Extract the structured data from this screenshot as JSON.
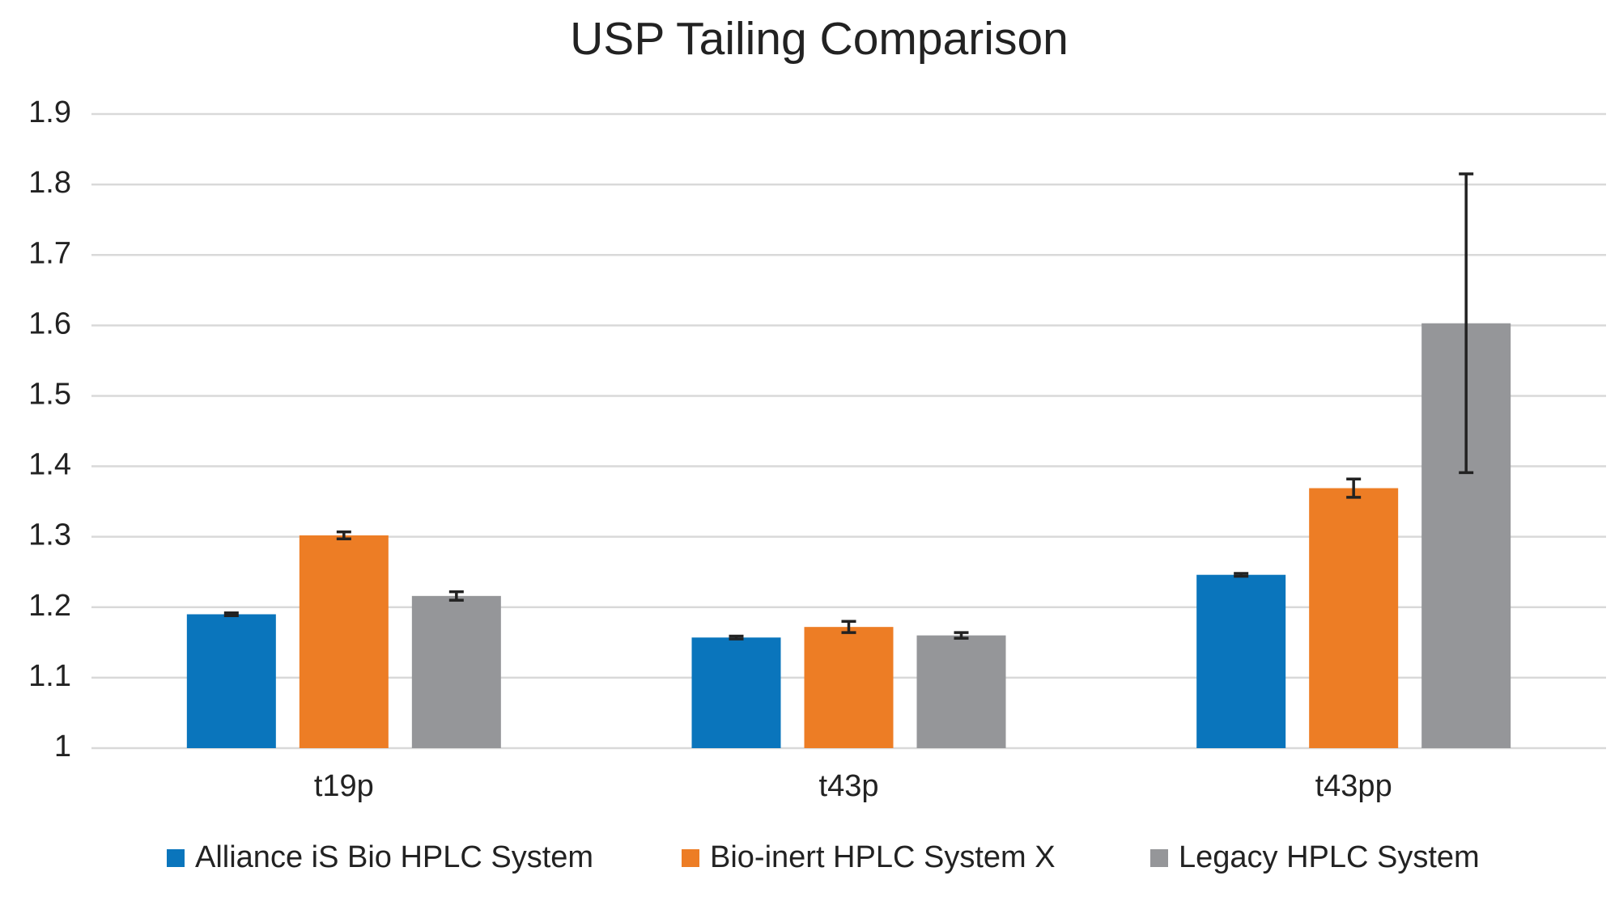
{
  "chart_data": {
    "type": "bar",
    "title": "USP Tailing Comparison",
    "categories": [
      "t19p",
      "t43p",
      "t43pp"
    ],
    "series": [
      {
        "name": "Alliance iS Bio HPLC System",
        "color": "#0a75bc",
        "values": [
          1.19,
          1.157,
          1.246
        ],
        "errors": [
          0.002,
          0.002,
          0.002
        ]
      },
      {
        "name": "Bio-inert HPLC System X",
        "color": "#ed7d25",
        "values": [
          1.302,
          1.172,
          1.369
        ],
        "errors": [
          0.005,
          0.008,
          0.013
        ]
      },
      {
        "name": "Legacy HPLC System",
        "color": "#959699",
        "values": [
          1.216,
          1.16,
          1.603
        ],
        "errors": [
          0.006,
          0.004,
          0.212
        ]
      }
    ],
    "ylim": [
      1,
      1.9
    ],
    "yticks": [
      1,
      1.1,
      1.2,
      1.3,
      1.4,
      1.5,
      1.6,
      1.7,
      1.8,
      1.9
    ],
    "grid": true,
    "legend": "bottom"
  }
}
